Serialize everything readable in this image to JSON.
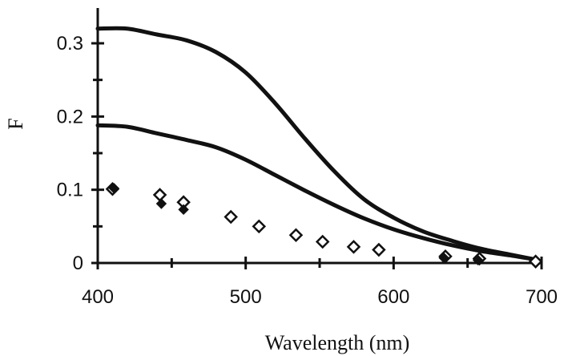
{
  "chart_data": {
    "type": "line",
    "xlabel": "Wavelength (nm)",
    "ylabel": "F",
    "xlim": [
      400,
      700
    ],
    "ylim": [
      0,
      0.35
    ],
    "x_ticks": [
      400,
      500,
      600,
      700
    ],
    "x_tick_labels": [
      "400",
      "500",
      "600",
      "700"
    ],
    "y_ticks": [
      0,
      0.1,
      0.2,
      0.3
    ],
    "y_tick_labels": [
      "0",
      "0.1",
      "0.2",
      "0.3"
    ],
    "grid": false,
    "series": [
      {
        "style": "line",
        "x": [
          400,
          420,
          440,
          460,
          480,
          500,
          520,
          540,
          560,
          580,
          600,
          620,
          640,
          660,
          680,
          695
        ],
        "y": [
          0.32,
          0.32,
          0.312,
          0.304,
          0.288,
          0.26,
          0.218,
          0.17,
          0.125,
          0.087,
          0.062,
          0.043,
          0.03,
          0.019,
          0.011,
          0.005
        ]
      },
      {
        "style": "line",
        "x": [
          400,
          420,
          440,
          460,
          480,
          500,
          520,
          540,
          560,
          580,
          600,
          620,
          640,
          660,
          680,
          695
        ],
        "y": [
          0.188,
          0.186,
          0.177,
          0.168,
          0.158,
          0.141,
          0.12,
          0.099,
          0.079,
          0.061,
          0.046,
          0.034,
          0.024,
          0.016,
          0.01,
          0.005
        ]
      },
      {
        "style": "open-diamond",
        "x": [
          410,
          442,
          458,
          490,
          509,
          534,
          552,
          573,
          590,
          635,
          658,
          696
        ],
        "y": [
          0.101,
          0.093,
          0.083,
          0.063,
          0.05,
          0.038,
          0.029,
          0.022,
          0.018,
          0.009,
          0.006,
          0.002
        ]
      },
      {
        "style": "filled-diamond",
        "x": [
          411,
          443,
          458,
          634,
          657
        ],
        "y": [
          0.102,
          0.081,
          0.073,
          0.007,
          0.004
        ]
      }
    ]
  }
}
